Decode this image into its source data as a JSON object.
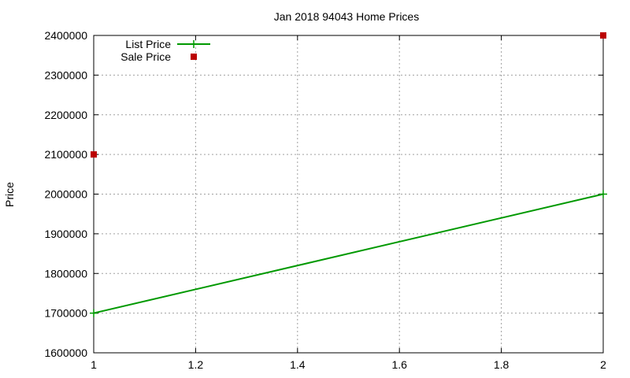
{
  "chart_data": {
    "type": "line",
    "title": "Jan 2018 94043 Home Prices",
    "xlabel": "",
    "ylabel": "Price",
    "xlim": [
      1,
      2
    ],
    "ylim": [
      1600000,
      2400000
    ],
    "x_ticks": [
      "1",
      "1.2",
      "1.4",
      "1.6",
      "1.8",
      "2"
    ],
    "y_ticks": [
      "1600000",
      "1700000",
      "1800000",
      "1900000",
      "2000000",
      "2100000",
      "2200000",
      "2300000",
      "2400000"
    ],
    "grid": true,
    "legend_position": "top-left",
    "series": [
      {
        "name": "List Price",
        "style": "linespoints",
        "color": "#009900",
        "points": [
          {
            "x": 1,
            "y": 1700000
          },
          {
            "x": 2,
            "y": 2000000
          }
        ]
      },
      {
        "name": "Sale Price",
        "style": "points",
        "color": "#bb0000",
        "points": [
          {
            "x": 1,
            "y": 2100000
          },
          {
            "x": 2,
            "y": 2400000
          }
        ]
      }
    ]
  }
}
